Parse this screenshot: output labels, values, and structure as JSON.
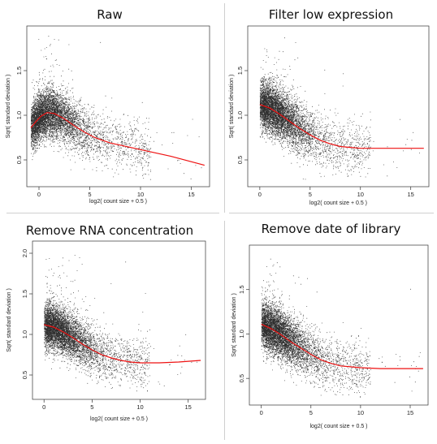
{
  "chart_data": [
    {
      "type": "scatter",
      "title": "Raw",
      "xlabel": "log2( count size + 0.5 )",
      "ylabel": "Sqrt( standard deviation )",
      "xlim": [
        -1.2,
        16.8
      ],
      "ylim": [
        0.2,
        2.0
      ],
      "x_ticks": [
        0,
        5,
        10,
        15
      ],
      "y_ticks": [
        0.5,
        1.0,
        1.5
      ],
      "trend_color": "#ee1111",
      "trend": {
        "x": [
          -0.8,
          -0.3,
          0.2,
          0.8,
          1.5,
          2.5,
          3.5,
          4.5,
          5.5,
          7,
          9,
          11,
          13,
          16.3
        ],
        "y": [
          0.86,
          0.93,
          0.99,
          1.03,
          1.02,
          0.96,
          0.88,
          0.81,
          0.75,
          0.69,
          0.64,
          0.59,
          0.54,
          0.44
        ]
      },
      "cloud": {
        "peak_x": 0.5,
        "density": "high",
        "x_range": [
          -0.8,
          16.3
        ]
      }
    },
    {
      "type": "scatter",
      "title": "Filter low expression",
      "xlabel": "log2( count size + 0.5 )",
      "ylabel": "Sqrt( standard deviation )",
      "xlim": [
        -1.2,
        16.8
      ],
      "ylim": [
        0.2,
        2.0
      ],
      "x_ticks": [
        0,
        5,
        10,
        15
      ],
      "y_ticks": [
        0.5,
        1.0,
        1.5
      ],
      "trend_color": "#ee1111",
      "trend": {
        "x": [
          0,
          1,
          2,
          3,
          4,
          5,
          6,
          7,
          8,
          9,
          10,
          12,
          14,
          16.3
        ],
        "y": [
          1.12,
          1.08,
          1.01,
          0.93,
          0.85,
          0.78,
          0.72,
          0.68,
          0.65,
          0.64,
          0.63,
          0.63,
          0.63,
          0.63
        ]
      },
      "cloud": {
        "peak_x": 0.5,
        "density": "high",
        "x_range": [
          0,
          16.3
        ]
      }
    },
    {
      "type": "scatter",
      "title": "Remove RNA concentration",
      "xlabel": "log2( count size + 0.5 )",
      "ylabel": "Sqrt( standard deviation )",
      "xlim": [
        -1.2,
        16.8
      ],
      "ylim": [
        0.2,
        2.15
      ],
      "x_ticks": [
        0,
        5,
        10,
        15
      ],
      "y_ticks": [
        0.5,
        1.0,
        1.5,
        2.0
      ],
      "trend_color": "#ee1111",
      "trend": {
        "x": [
          0,
          1,
          2,
          3,
          4,
          5,
          6,
          7,
          8,
          9,
          10,
          12,
          14,
          16.3
        ],
        "y": [
          1.12,
          1.09,
          1.03,
          0.96,
          0.88,
          0.81,
          0.75,
          0.71,
          0.68,
          0.66,
          0.65,
          0.65,
          0.66,
          0.68
        ]
      },
      "cloud": {
        "peak_x": 0.5,
        "density": "high",
        "x_range": [
          0,
          16.3
        ]
      }
    },
    {
      "type": "scatter",
      "title": "Remove date of library",
      "xlabel": "log2( count size + 0.5 )",
      "ylabel": "Sqrt( standard deviation )",
      "xlim": [
        -1.2,
        16.8
      ],
      "ylim": [
        0.2,
        2.0
      ],
      "x_ticks": [
        0,
        5,
        10,
        15
      ],
      "y_ticks": [
        0.5,
        1.0,
        1.5
      ],
      "trend_color": "#ee1111",
      "trend": {
        "x": [
          0,
          1,
          2,
          3,
          4,
          5,
          6,
          7,
          8,
          9,
          10,
          12,
          14,
          16.3
        ],
        "y": [
          1.11,
          1.06,
          0.99,
          0.91,
          0.84,
          0.77,
          0.71,
          0.67,
          0.64,
          0.63,
          0.62,
          0.61,
          0.61,
          0.61
        ]
      },
      "cloud": {
        "peak_x": 0.5,
        "density": "high",
        "x_range": [
          0,
          16.3
        ]
      }
    }
  ]
}
